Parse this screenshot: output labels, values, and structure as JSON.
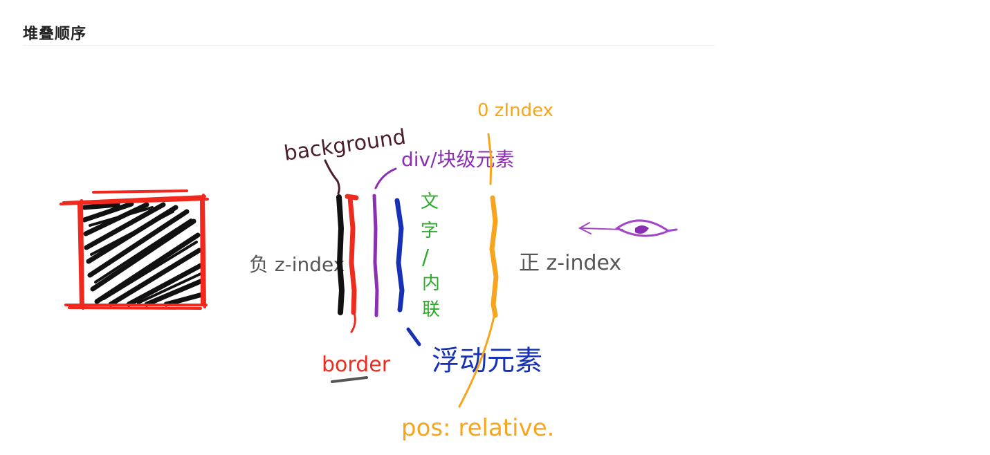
{
  "page": {
    "top_link_fragment": "",
    "section_title": "堆叠顺序"
  },
  "diagram": {
    "labels": {
      "background": "background",
      "border": "border",
      "div_block": "div/块级元素",
      "text_inline_line1": "文",
      "text_inline_line2": "字",
      "text_inline_line3": "/",
      "text_inline_line4": "内",
      "text_inline_line5": "联",
      "float": "浮动元素",
      "zero_zindex": "0  zIndex",
      "positive_zindex": "正 z-index",
      "negative_zindex": "负 z-index",
      "pos_relative": "pos: relative."
    },
    "colors": {
      "box_border": "#f0281e",
      "box_fill": "#111111",
      "background_line": "#111111",
      "border_line": "#ee2b1f",
      "div_line": "#8b2fb2",
      "float_line": "#1631b4",
      "text_line": "#2daa2a",
      "zero_line": "#f7a51e",
      "eye": "#a345c8",
      "gray_text": "#555555",
      "background_text": "#4a1e2a"
    }
  }
}
